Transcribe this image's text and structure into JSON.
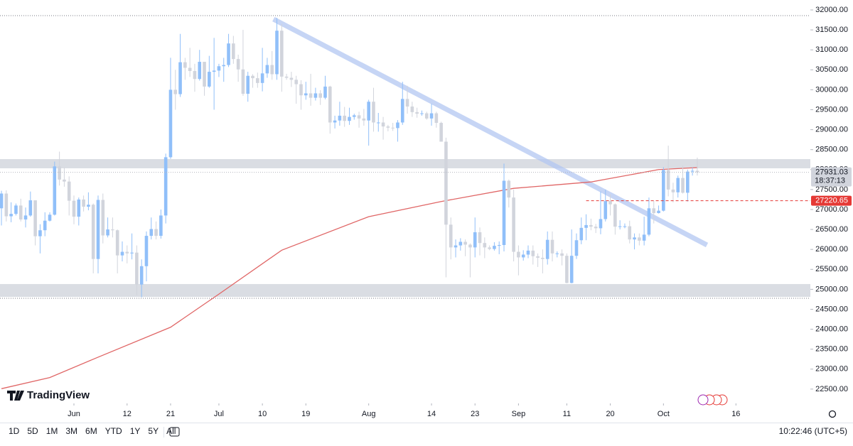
{
  "chart_data": {
    "type": "candlestick",
    "up_color": "#90bff9",
    "down_color": "#d1d4dc",
    "ohlc": [
      [
        27030,
        27470,
        26600,
        27400
      ],
      [
        27400,
        27480,
        26700,
        26830
      ],
      [
        26830,
        27180,
        26680,
        26890
      ],
      [
        26890,
        27150,
        26850,
        27100
      ],
      [
        27100,
        27270,
        26700,
        26750
      ],
      [
        26750,
        27050,
        26550,
        26850
      ],
      [
        26850,
        27450,
        26820,
        27230
      ],
      [
        27230,
        27230,
        26100,
        26330
      ],
      [
        26330,
        26630,
        25900,
        26480
      ],
      [
        26480,
        26930,
        26330,
        26720
      ],
      [
        26720,
        26930,
        26700,
        26870
      ],
      [
        26870,
        28200,
        26850,
        28080
      ],
      [
        28080,
        28450,
        27600,
        27750
      ],
      [
        27750,
        28050,
        27570,
        27700
      ],
      [
        27700,
        27830,
        26850,
        27220
      ],
      [
        27220,
        27350,
        26630,
        26820
      ],
      [
        26820,
        27300,
        26600,
        27250
      ],
      [
        27250,
        27350,
        26950,
        27070
      ],
      [
        27070,
        27430,
        26980,
        27120
      ],
      [
        27120,
        27150,
        25400,
        25760
      ],
      [
        25760,
        27350,
        25400,
        27240
      ],
      [
        27240,
        27400,
        26150,
        26350
      ],
      [
        26350,
        26800,
        26300,
        26500
      ],
      [
        26500,
        26800,
        26300,
        26480
      ],
      [
        26480,
        26500,
        25400,
        25850
      ],
      [
        25850,
        26200,
        25700,
        25940
      ],
      [
        25940,
        26100,
        25650,
        25900
      ],
      [
        25900,
        26400,
        25750,
        25920
      ],
      [
        25920,
        26100,
        24850,
        25120
      ],
      [
        25120,
        25750,
        24800,
        25580
      ],
      [
        25580,
        26450,
        25200,
        26340
      ],
      [
        26340,
        26800,
        26250,
        26510
      ],
      [
        26510,
        26700,
        26250,
        26340
      ],
      [
        26340,
        27000,
        26270,
        26850
      ],
      [
        26850,
        28400,
        26650,
        28310
      ],
      [
        28310,
        30800,
        28270,
        30000
      ],
      [
        30000,
        30500,
        29500,
        29890
      ],
      [
        29890,
        31400,
        29820,
        30690
      ],
      [
        30690,
        30800,
        30250,
        30550
      ],
      [
        30550,
        31050,
        30320,
        30470
      ],
      [
        30470,
        30650,
        29950,
        30270
      ],
      [
        30270,
        31000,
        30230,
        30700
      ],
      [
        30700,
        30700,
        29850,
        30080
      ],
      [
        30080,
        30850,
        30050,
        30450
      ],
      [
        30450,
        31300,
        29500,
        30480
      ],
      [
        30480,
        30650,
        30320,
        30590
      ],
      [
        30590,
        30800,
        30200,
        30620
      ],
      [
        30620,
        31400,
        30570,
        31160
      ],
      [
        31160,
        31350,
        30650,
        30770
      ],
      [
        30770,
        30880,
        30200,
        30510
      ],
      [
        30510,
        31500,
        29850,
        29900
      ],
      [
        29900,
        30450,
        29700,
        30350
      ],
      [
        30350,
        30390,
        30050,
        30290
      ],
      [
        30290,
        30430,
        30050,
        30170
      ],
      [
        30170,
        31050,
        29960,
        30410
      ],
      [
        30410,
        30800,
        30300,
        30620
      ],
      [
        30620,
        30970,
        30250,
        30390
      ],
      [
        30390,
        31800,
        30250,
        31480
      ],
      [
        31480,
        31650,
        29950,
        30330
      ],
      [
        30330,
        30400,
        30250,
        30300
      ],
      [
        30300,
        30450,
        30070,
        30250
      ],
      [
        30250,
        30350,
        29650,
        30140
      ],
      [
        30140,
        30240,
        29500,
        29860
      ],
      [
        29860,
        30200,
        29750,
        29910
      ],
      [
        29910,
        30400,
        29600,
        29800
      ],
      [
        29800,
        30050,
        29730,
        29910
      ],
      [
        29910,
        29990,
        29620,
        29800
      ],
      [
        29800,
        30350,
        29760,
        30080
      ],
      [
        30080,
        30100,
        28900,
        29180
      ],
      [
        29180,
        29350,
        29030,
        29230
      ],
      [
        29230,
        29700,
        29100,
        29350
      ],
      [
        29350,
        29570,
        29070,
        29220
      ],
      [
        29220,
        29550,
        29120,
        29320
      ],
      [
        29320,
        29400,
        29250,
        29360
      ],
      [
        29360,
        29450,
        29050,
        29280
      ],
      [
        29280,
        29520,
        29100,
        29230
      ],
      [
        29230,
        29750,
        28600,
        29700
      ],
      [
        29700,
        30050,
        28950,
        29180
      ],
      [
        29180,
        29420,
        28950,
        29180
      ],
      [
        29180,
        29320,
        28750,
        29080
      ],
      [
        29080,
        29120,
        28960,
        29050
      ],
      [
        29050,
        29170,
        28970,
        29040
      ],
      [
        29040,
        29240,
        28700,
        29180
      ],
      [
        29180,
        30200,
        29120,
        29770
      ],
      [
        29770,
        30100,
        29400,
        29580
      ],
      [
        29580,
        29700,
        29320,
        29440
      ],
      [
        29440,
        29550,
        29300,
        29400
      ],
      [
        29400,
        29480,
        29350,
        29410
      ],
      [
        29410,
        29450,
        29250,
        29280
      ],
      [
        29280,
        29650,
        29100,
        29410
      ],
      [
        29410,
        29450,
        29050,
        29170
      ],
      [
        29170,
        29200,
        28700,
        28700
      ],
      [
        28700,
        28800,
        25300,
        26620
      ],
      [
        26620,
        26800,
        25750,
        26050
      ],
      [
        26050,
        26250,
        25800,
        26100
      ],
      [
        26100,
        26280,
        25970,
        26190
      ],
      [
        26190,
        26250,
        25830,
        26120
      ],
      [
        26120,
        26150,
        25300,
        26050
      ],
      [
        26050,
        26800,
        25800,
        26430
      ],
      [
        26430,
        26550,
        25850,
        26160
      ],
      [
        26160,
        26300,
        25780,
        26050
      ],
      [
        26050,
        26100,
        25980,
        26010
      ],
      [
        26010,
        26180,
        25970,
        26090
      ],
      [
        26090,
        26200,
        25880,
        26110
      ],
      [
        26110,
        28150,
        25950,
        27720
      ],
      [
        27720,
        27750,
        27050,
        27300
      ],
      [
        27300,
        27500,
        25700,
        25940
      ],
      [
        25940,
        26100,
        25350,
        25800
      ],
      [
        25800,
        25980,
        25720,
        25870
      ],
      [
        25870,
        26100,
        25780,
        25970
      ],
      [
        25970,
        26100,
        25620,
        25830
      ],
      [
        25830,
        25900,
        25560,
        25790
      ],
      [
        25790,
        26000,
        25400,
        25760
      ],
      [
        25760,
        26450,
        25620,
        26240
      ],
      [
        26240,
        26450,
        25700,
        25900
      ],
      [
        25900,
        25950,
        25800,
        25900
      ],
      [
        25900,
        26000,
        25600,
        25840
      ],
      [
        25840,
        25900,
        25150,
        25160
      ],
      [
        25160,
        26500,
        25150,
        25840
      ],
      [
        25840,
        26400,
        25760,
        26230
      ],
      [
        26230,
        26800,
        26130,
        26540
      ],
      [
        26540,
        26880,
        26230,
        26610
      ],
      [
        26610,
        26770,
        26480,
        26570
      ],
      [
        26570,
        26640,
        26410,
        26530
      ],
      [
        26530,
        27450,
        26380,
        26760
      ],
      [
        26760,
        27500,
        26700,
        27210
      ],
      [
        27210,
        27380,
        26850,
        27130
      ],
      [
        27130,
        27150,
        26370,
        26570
      ],
      [
        26570,
        26730,
        26500,
        26580
      ],
      [
        26580,
        26650,
        26530,
        26580
      ],
      [
        26580,
        26720,
        26150,
        26250
      ],
      [
        26250,
        26400,
        26000,
        26300
      ],
      [
        26300,
        26400,
        26100,
        26220
      ],
      [
        26220,
        26820,
        26100,
        26370
      ],
      [
        26370,
        27300,
        26330,
        27030
      ],
      [
        27030,
        27220,
        26650,
        26910
      ],
      [
        26910,
        27100,
        26900,
        26970
      ],
      [
        26970,
        28060,
        26950,
        27990
      ],
      [
        27990,
        28600,
        27330,
        27500
      ],
      [
        27500,
        27670,
        27180,
        27430
      ],
      [
        27430,
        27850,
        27300,
        27790
      ],
      [
        27790,
        28100,
        27400,
        27420
      ],
      [
        27420,
        28000,
        27200,
        27950
      ],
      [
        27950,
        28050,
        27850,
        27970
      ],
      [
        27970,
        28300,
        27850,
        27931.03
      ]
    ],
    "ma": {
      "color": "#e06666",
      "x": [
        0,
        10,
        20,
        35,
        45,
        58,
        76,
        91,
        106,
        122,
        136,
        144
      ],
      "values": [
        22510,
        22790,
        23300,
        24050,
        24880,
        25980,
        26820,
        27200,
        27530,
        27690,
        28000,
        28050
      ]
    },
    "zones": [
      [
        28032,
        28263
      ],
      [
        24811,
        25132
      ]
    ],
    "levels": [
      31858,
      24776
    ],
    "trendline": {
      "x": [
        56.3,
        146
      ],
      "values": [
        31769,
        26110
      ]
    },
    "price_line": {
      "value": 27220.65,
      "color": "#e53935"
    },
    "countdown": "18:37:13",
    "xlim": [
      -0.3,
      167.4
    ],
    "ylim": [
      22142,
      32249
    ],
    "xticks": [
      {
        "value": 15,
        "label": "Jun"
      },
      {
        "value": 26,
        "label": "12"
      },
      {
        "value": 35,
        "label": "21"
      },
      {
        "value": 45,
        "label": "Jul"
      },
      {
        "value": 54,
        "label": "10"
      },
      {
        "value": 63,
        "label": "19"
      },
      {
        "value": 76,
        "label": "Aug"
      },
      {
        "value": 89,
        "label": "14"
      },
      {
        "value": 98,
        "label": "23"
      },
      {
        "value": 107,
        "label": "Sep"
      },
      {
        "value": 117,
        "label": "11"
      },
      {
        "value": 126,
        "label": "20"
      },
      {
        "value": 137,
        "label": "Oct"
      },
      {
        "value": 152,
        "label": "16"
      }
    ],
    "yticks": [
      {
        "value": 22500,
        "label": "22500.00"
      },
      {
        "value": 23000,
        "label": "23000.00"
      },
      {
        "value": 23500,
        "label": "23500.00"
      },
      {
        "value": 24000,
        "label": "24000.00"
      },
      {
        "value": 24500,
        "label": "24500.00"
      },
      {
        "value": 25000,
        "label": "25000.00"
      },
      {
        "value": 25500,
        "label": "25500.00"
      },
      {
        "value": 26000,
        "label": "26000.00"
      },
      {
        "value": 26500,
        "label": "26500.00"
      },
      {
        "value": 27000,
        "label": "27000.00"
      },
      {
        "value": 27500,
        "label": "27500.00"
      },
      {
        "value": 28000,
        "label": "28000.00"
      },
      {
        "value": 28500,
        "label": "28500.00"
      },
      {
        "value": 29000,
        "label": "29000.00"
      },
      {
        "value": 29500,
        "label": "29500.00"
      },
      {
        "value": 30000,
        "label": "30000.00"
      },
      {
        "value": 30500,
        "label": "30500.00"
      },
      {
        "value": 31000,
        "label": "31000.00"
      },
      {
        "value": 31500,
        "label": "31500.00"
      },
      {
        "value": 32000,
        "label": "32000.00"
      }
    ],
    "logo": "TradingView",
    "toolbar": {
      "ranges": [
        "1D",
        "5D",
        "1M",
        "3M",
        "6M",
        "YTD",
        "1Y",
        "5Y",
        "All"
      ],
      "clock": "10:22:46 (UTC+5)"
    }
  }
}
